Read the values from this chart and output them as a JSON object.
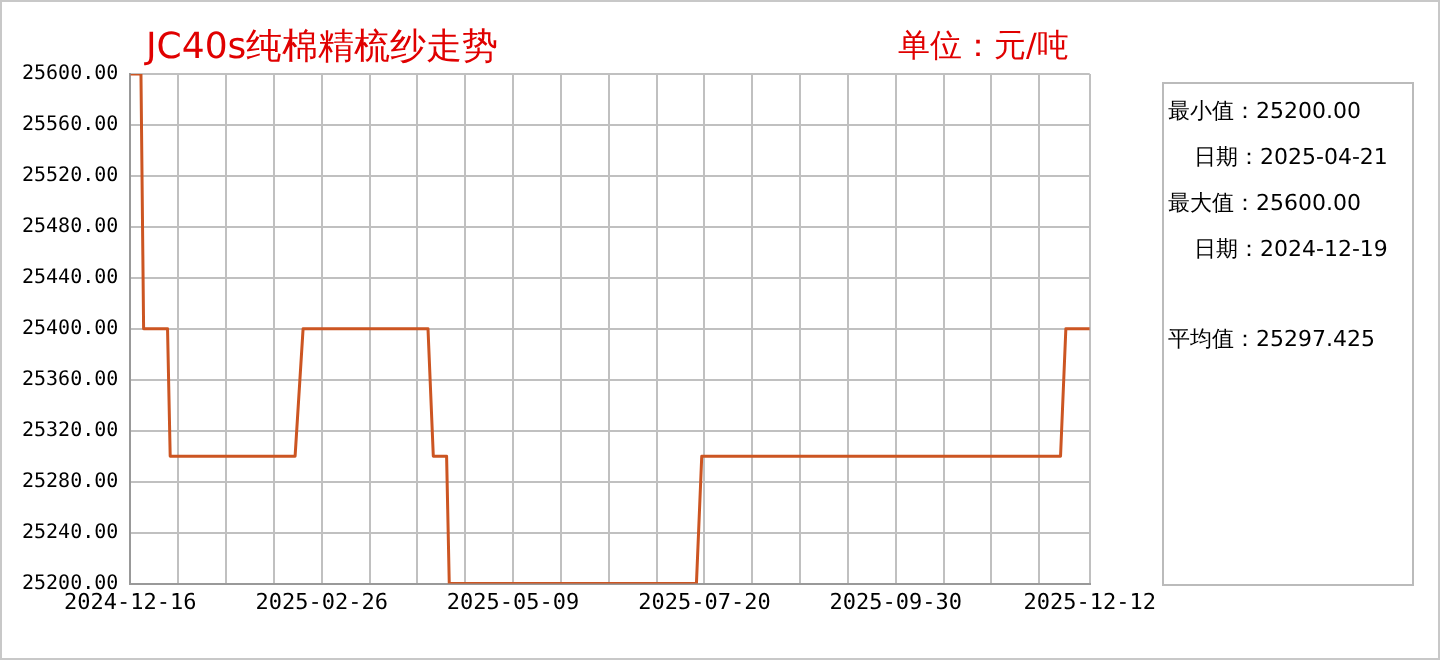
{
  "chart_data": {
    "type": "line",
    "title": "JC40s纯棉精梳纱走势",
    "subtitle": "单位：元/吨",
    "annotations": [
      "最小值：25200.00",
      "日期：2025-04-21",
      "最大值：25600.00",
      "日期：2024-12-19",
      "平均值：25297.425"
    ],
    "x": [
      "2024-12-16",
      "2024-12-20",
      "2024-12-21",
      "2024-12-30",
      "2024-12-31",
      "2025-02-16",
      "2025-02-19",
      "2025-04-07",
      "2025-04-09",
      "2025-04-14",
      "2025-04-15",
      "2025-07-17",
      "2025-07-19",
      "2025-12-01",
      "2025-12-03",
      "2025-12-12"
    ],
    "series": [
      {
        "color": "#cc5522",
        "values": [
          25600,
          25600,
          25400,
          25400,
          25300,
          25300,
          25400,
          25400,
          25300,
          25300,
          25200,
          25200,
          25300,
          25300,
          25400,
          25400
        ]
      }
    ],
    "xlim": [
      "2024-12-16",
      "2025-12-12"
    ],
    "xticks": [
      {
        "value": "2024-12-16",
        "label": "2024-12-16"
      },
      {
        "value": "2025-01-03",
        "label": null
      },
      {
        "value": "2025-01-21",
        "label": null
      },
      {
        "value": "2025-02-08",
        "label": null
      },
      {
        "value": "2025-02-26",
        "label": "2025-02-26"
      },
      {
        "value": "2025-03-16",
        "label": null
      },
      {
        "value": "2025-04-03",
        "label": null
      },
      {
        "value": "2025-04-21",
        "label": null
      },
      {
        "value": "2025-05-09",
        "label": "2025-05-09"
      },
      {
        "value": "2025-05-27",
        "label": null
      },
      {
        "value": "2025-06-14",
        "label": null
      },
      {
        "value": "2025-07-02",
        "label": null
      },
      {
        "value": "2025-07-20",
        "label": "2025-07-20"
      },
      {
        "value": "2025-08-07",
        "label": null
      },
      {
        "value": "2025-08-25",
        "label": null
      },
      {
        "value": "2025-09-12",
        "label": null
      },
      {
        "value": "2025-09-30",
        "label": "2025-09-30"
      },
      {
        "value": "2025-10-18",
        "label": null
      },
      {
        "value": "2025-11-05",
        "label": null
      },
      {
        "value": "2025-11-23",
        "label": null
      },
      {
        "value": "2025-12-12",
        "label": "2025-12-12"
      }
    ],
    "ylim": [
      25200,
      25600
    ],
    "yticks": [
      {
        "value": 25200,
        "label": "25200.00"
      },
      {
        "value": 25240,
        "label": "25240.00"
      },
      {
        "value": 25280,
        "label": "25280.00"
      },
      {
        "value": 25320,
        "label": "25320.00"
      },
      {
        "value": 25360,
        "label": "25360.00"
      },
      {
        "value": 25400,
        "label": "25400.00"
      },
      {
        "value": 25440,
        "label": "25440.00"
      },
      {
        "value": 25480,
        "label": "25480.00"
      },
      {
        "value": 25520,
        "label": "25520.00"
      },
      {
        "value": 25560,
        "label": "25560.00"
      },
      {
        "value": 25600,
        "label": "25600.00"
      }
    ],
    "grid": true,
    "legend": false,
    "marker": "none",
    "line_style": "solid"
  }
}
